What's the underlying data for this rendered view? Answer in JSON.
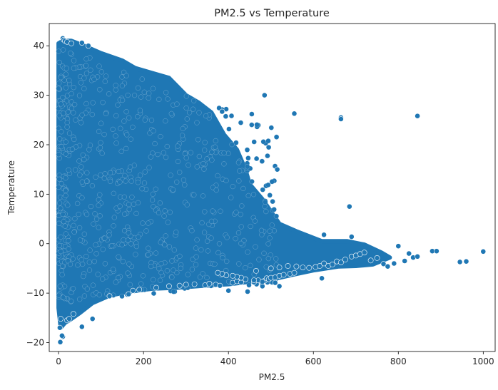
{
  "chart_data": {
    "type": "scatter",
    "title": "PM2.5 vs Temperature",
    "xlabel": "PM2.5",
    "ylabel": "Temperature",
    "xlim": [
      -22,
      1028
    ],
    "ylim": [
      -21.8,
      44.5
    ],
    "xticks": [
      0,
      200,
      400,
      600,
      800,
      1000
    ],
    "yticks": [
      -20,
      -10,
      0,
      10,
      20,
      30,
      40
    ],
    "grid": false,
    "legend": "none",
    "marker_color": "#1f77b4",
    "marker_edge": "#ffffff",
    "series": [
      {
        "points_note": "dense cloud approximated by sampled outlier points",
        "x": [
          4,
          10,
          20,
          25,
          35,
          55,
          80,
          120,
          165,
          175,
          190,
          230,
          260,
          285,
          300,
          320,
          345,
          355,
          370,
          380,
          400,
          410,
          420,
          430,
          445,
          460,
          470,
          480,
          485,
          490,
          495,
          500,
          510,
          520,
          530,
          545,
          555,
          520,
          510,
          480,
          460,
          440,
          430,
          420,
          410,
          395,
          385,
          375,
          465,
          500,
          520,
          540,
          560,
          575,
          590,
          605,
          615,
          625,
          635,
          645,
          655,
          665,
          675,
          690,
          700,
          710,
          720,
          735,
          750,
          765,
          775,
          790,
          800,
          815,
          825,
          835,
          845,
          880,
          890,
          945,
          960,
          1000,
          685,
          665,
          665,
          845,
          690,
          625,
          620,
          555,
          455,
          515,
          485,
          385,
          10,
          12,
          15,
          20,
          30,
          55,
          70,
          3,
          5,
          8
        ],
        "y": [
          -19.9,
          -18.8,
          -15.5,
          -15.2,
          -14.2,
          -16.8,
          -15.2,
          -10.6,
          -10.2,
          -9.5,
          -9.3,
          -8.9,
          -8.6,
          -8.5,
          -8.3,
          -8.2,
          -8.4,
          -8.1,
          -8.3,
          -8.5,
          -9.5,
          -7.9,
          -7.6,
          -7.8,
          -9.7,
          -7.8,
          -7.4,
          -8.6,
          -7.5,
          -7.0,
          -7.2,
          -6.9,
          -6.8,
          -6.5,
          -6.3,
          -6.1,
          -5.9,
          -8.6,
          -7.9,
          -7.7,
          -7.4,
          -7.2,
          -6.9,
          -6.7,
          -6.5,
          -6.4,
          -6.1,
          -5.9,
          -5.5,
          -5.0,
          -4.8,
          -4.5,
          -4.6,
          -4.8,
          -4.9,
          -4.7,
          -4.5,
          -4.0,
          -4.5,
          -4.2,
          -3.6,
          -3.8,
          -3.2,
          -2.6,
          -2.4,
          -2.1,
          -1.8,
          -3.4,
          -2.9,
          -4.1,
          -4.6,
          -4.0,
          -0.5,
          -3.5,
          -2.0,
          -2.8,
          -2.6,
          -1.5,
          -1.5,
          -3.7,
          -3.6,
          -1.6,
          7.5,
          25.5,
          25.2,
          25.8,
          1.4,
          1.8,
          -7.0,
          26.3,
          26.2,
          15.0,
          30.0,
          26.7,
          41.5,
          41.2,
          41.0,
          40.8,
          40.5,
          40.6,
          40.0,
          -17.0,
          -15.2,
          -18.6
        ]
      }
    ]
  }
}
